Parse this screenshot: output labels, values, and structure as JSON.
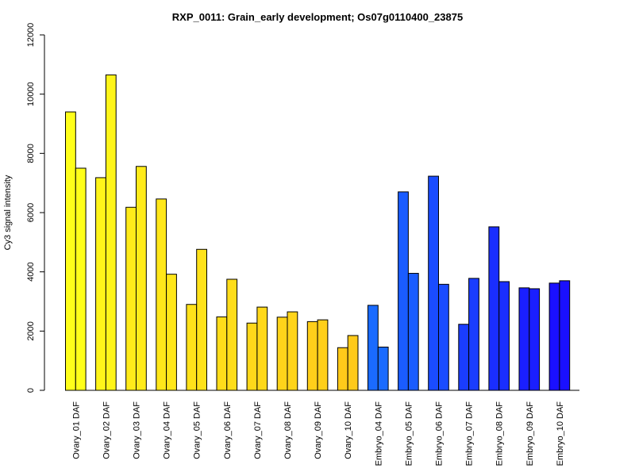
{
  "chart_data": {
    "type": "bar",
    "title": "RXP_0011: Grain_early development; Os07g0110400_23875",
    "xlabel": "",
    "ylabel": "Cy3 signal intensity",
    "ylim": [
      0,
      12000
    ],
    "yticks": [
      0,
      2000,
      4000,
      6000,
      8000,
      10000,
      12000
    ],
    "yticks_labels": [
      "0",
      "2000",
      "4000",
      "6000",
      "8000",
      "10000",
      "12000"
    ],
    "grid": false,
    "legend": "none",
    "categories": [
      "Ovary_01 DAF",
      "Ovary_02 DAF",
      "Ovary_03 DAF",
      "Ovary_04 DAF",
      "Ovary_05 DAF",
      "Ovary_06 DAF",
      "Ovary_07 DAF",
      "Ovary_08 DAF",
      "Ovary_09 DAF",
      "Ovary_10 DAF",
      "Embryo_04 DAF",
      "Embryo_05 DAF",
      "Embryo_06 DAF",
      "Embryo_07 DAF",
      "Embryo_08 DAF",
      "Embryo_09 DAF",
      "Embryo_10 DAF"
    ],
    "series": [
      {
        "values": [
          9400,
          7180,
          6180,
          6460,
          2900,
          2480,
          2270,
          2470,
          2320,
          1440,
          2870,
          6700,
          7230,
          2230,
          5520,
          3460,
          3620
        ]
      },
      {
        "values": [
          7500,
          10650,
          7560,
          3920,
          4760,
          3750,
          2810,
          2650,
          2380,
          1850,
          1460,
          3950,
          3580,
          3780,
          3670,
          3430,
          3700
        ]
      }
    ],
    "colors": [
      "#ffff1a",
      "#fff51a",
      "#ffeb1a",
      "#ffe71a",
      "#ffe21a",
      "#ffdd1a",
      "#ffd81a",
      "#ffd41a",
      "#ffcf1a",
      "#ffca1a",
      "#1a6bff",
      "#1a5cff",
      "#1a4cff",
      "#1a3dff",
      "#1a2eff",
      "#1a1fff",
      "#1a10ff"
    ]
  }
}
